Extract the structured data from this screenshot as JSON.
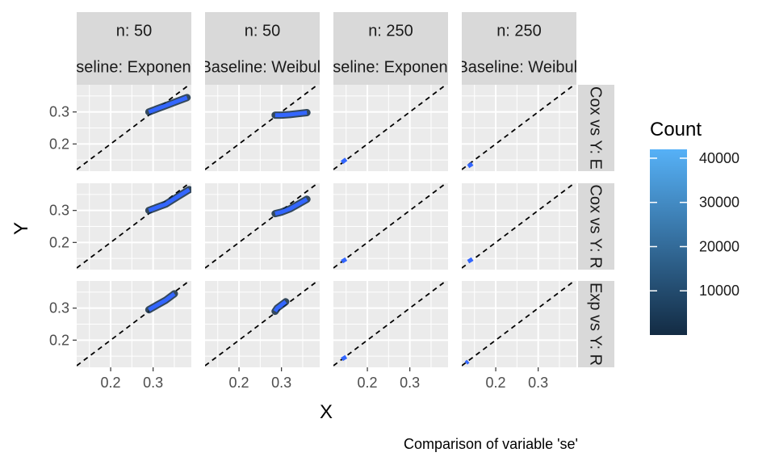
{
  "chart_data": {
    "type": "line",
    "xlabel": "X",
    "ylabel": "Y",
    "caption": "Comparison of variable 'se'",
    "xlim": [
      0.12,
      0.39
    ],
    "ylim": [
      0.115,
      0.385
    ],
    "x_ticks": [
      0.2,
      0.3
    ],
    "x_tick_labels": [
      "0.2",
      "0.3"
    ],
    "y_ticks": [
      0.2,
      0.3
    ],
    "y_tick_labels": [
      "0.2",
      "0.3"
    ],
    "reference_line": "y = x",
    "grid": true,
    "columns": [
      {
        "n_label": "n: 50",
        "baseline_label": "Baseline: Exponential"
      },
      {
        "n_label": "n: 50",
        "baseline_label": "Baseline: Weibull"
      },
      {
        "n_label": "n: 250",
        "baseline_label": "Baseline: Exponential"
      },
      {
        "n_label": "n: 250",
        "baseline_label": "Baseline: Weibull"
      }
    ],
    "rows": [
      {
        "label": "Cox vs Y: E"
      },
      {
        "label": "Cox vs Y: R"
      },
      {
        "label": "Exp vs Y: R"
      }
    ],
    "panels": [
      [
        {
          "x": [
            0.29,
            0.31,
            0.33,
            0.36,
            0.38
          ],
          "y": [
            0.3,
            0.31,
            0.32,
            0.335,
            0.345
          ]
        },
        {
          "x": [
            0.285,
            0.3,
            0.32,
            0.34,
            0.36
          ],
          "y": [
            0.29,
            0.29,
            0.292,
            0.295,
            0.298
          ]
        },
        {
          "x": [
            0.14,
            0.15
          ],
          "y": [
            0.142,
            0.152
          ]
        },
        {
          "x": [
            0.135,
            0.145
          ],
          "y": [
            0.13,
            0.138
          ]
        }
      ],
      [
        {
          "x": [
            0.29,
            0.31,
            0.33,
            0.36,
            0.385
          ],
          "y": [
            0.3,
            0.31,
            0.32,
            0.345,
            0.365
          ]
        },
        {
          "x": [
            0.285,
            0.3,
            0.32,
            0.34,
            0.36
          ],
          "y": [
            0.29,
            0.295,
            0.305,
            0.32,
            0.335
          ]
        },
        {
          "x": [
            0.14,
            0.15
          ],
          "y": [
            0.14,
            0.148
          ]
        },
        {
          "x": [
            0.135,
            0.145
          ],
          "y": [
            0.14,
            0.148
          ]
        }
      ],
      [
        {
          "x": [
            0.29,
            0.31,
            0.33,
            0.35
          ],
          "y": [
            0.295,
            0.31,
            0.325,
            0.345
          ]
        },
        {
          "x": [
            0.285,
            0.29,
            0.31
          ],
          "y": [
            0.29,
            0.3,
            0.32
          ]
        },
        {
          "x": [
            0.14,
            0.15
          ],
          "y": [
            0.14,
            0.148
          ]
        },
        {
          "x": [
            0.13,
            0.135
          ],
          "y": [
            0.128,
            0.134
          ]
        }
      ]
    ],
    "legend": {
      "title": "Count",
      "position": "right",
      "min": 0,
      "max": 42000,
      "ticks": [
        10000,
        20000,
        30000,
        40000
      ],
      "tick_labels": [
        "10000",
        "20000",
        "30000",
        "40000"
      ],
      "color_low": "#132B43",
      "color_high": "#56B1F7"
    },
    "colors": {
      "panel_background": "#EBEBEB",
      "strip_background": "#D9D9D9",
      "grid": "#FFFFFF",
      "line": "#3366FF",
      "reference": "#000000"
    }
  }
}
